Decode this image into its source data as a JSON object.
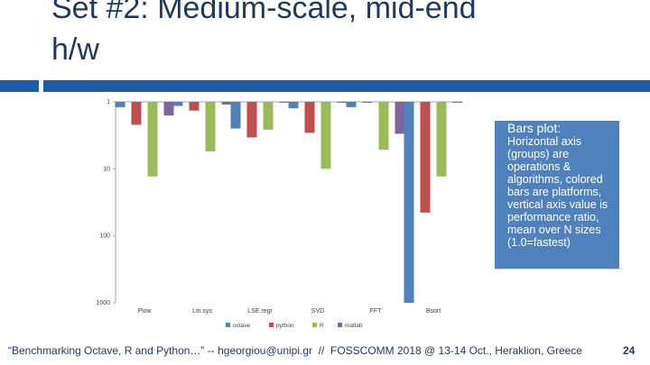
{
  "slide": {
    "title_line1": "Set #2: Medium-scale, mid-end",
    "title_line2": "h/w",
    "note_title": "Bars plot:",
    "note_body": "Horizontal axis (groups) are operations & algorithms, colored bars are platforms, vertical axis value is performance ratio, mean over N sizes (1.0=fastest)",
    "footer": "“Benchmarking Octave, R and Python…” -- hgeorgiou@unipi.gr  //  FOSSCOMM 2018 @ 13-14 Oct., Heraklion, Greece",
    "page_number": "24",
    "band_color": "#1f5aa8"
  },
  "chart_data": {
    "type": "bar",
    "title": "",
    "xlabel": "",
    "ylabel": "",
    "yscale": "log",
    "y_reversed": true,
    "ylim": [
      1,
      1000
    ],
    "yticks": [
      "1",
      "10",
      "100",
      "1000"
    ],
    "grid": false,
    "legend_position": "bottom",
    "categories": [
      "Plow",
      "Lin.sys",
      "LSE.regr",
      "SVD",
      "FFT",
      "Bsort"
    ],
    "series": [
      {
        "name": "octave",
        "color": "#4f81bd",
        "values": [
          1.2,
          1.15,
          2.5,
          1.25,
          1.2,
          1000
        ]
      },
      {
        "name": "python",
        "color": "#c0504d",
        "values": [
          2.2,
          1.35,
          3.4,
          2.9,
          1.0,
          45
        ]
      },
      {
        "name": "R",
        "color": "#9bbb59",
        "values": [
          13,
          5.5,
          2.6,
          10,
          5.2,
          13
        ]
      },
      {
        "name": "matlab",
        "color": "#8064a2",
        "values": [
          1.6,
          1.1,
          1.0,
          1.0,
          3.0,
          1.0
        ]
      }
    ]
  }
}
